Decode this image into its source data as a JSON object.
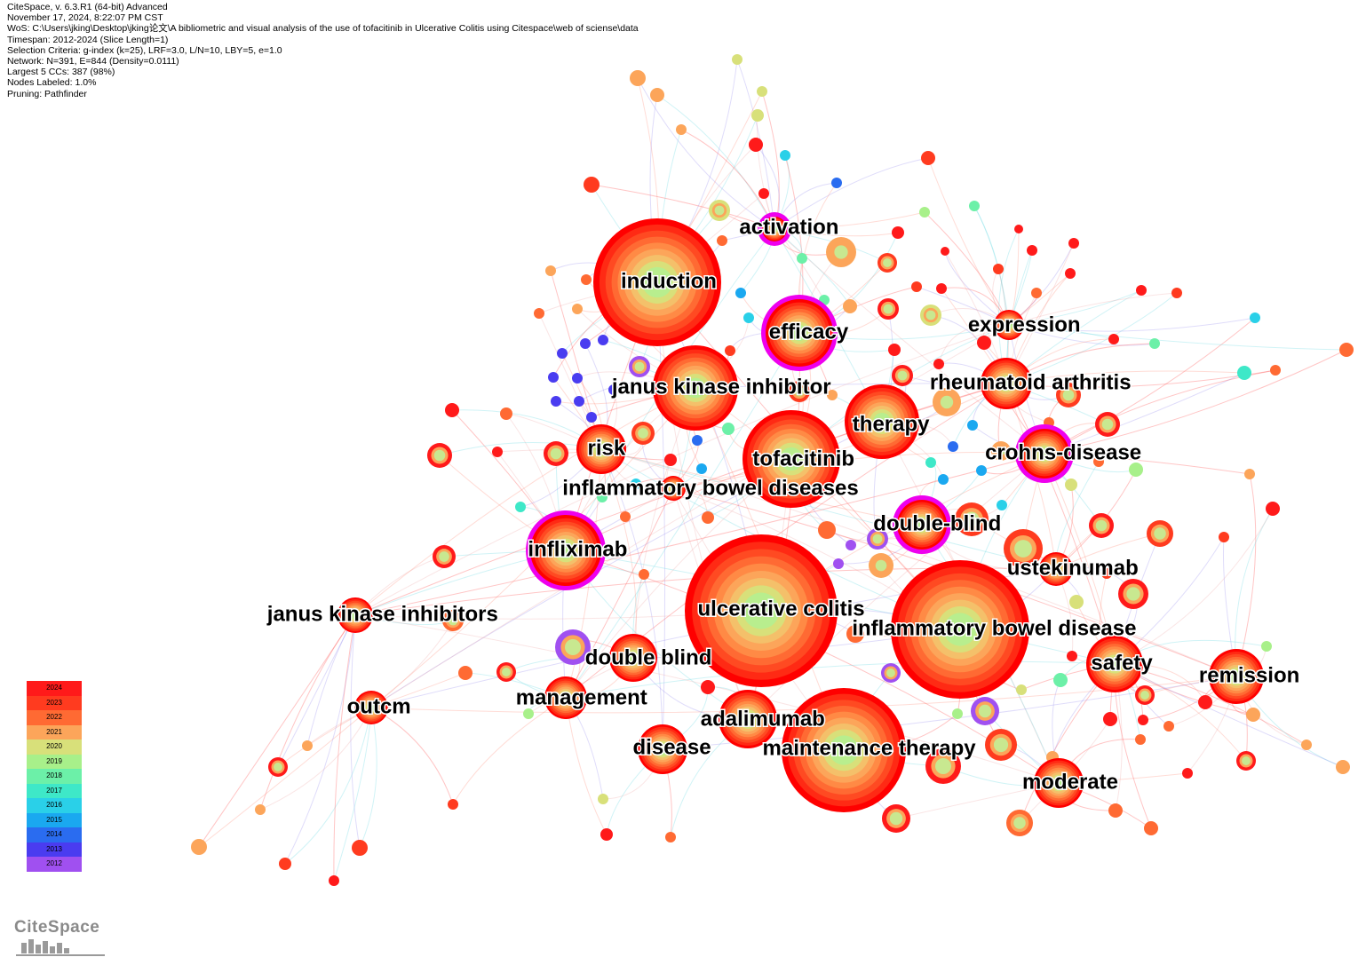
{
  "header": {
    "lines": [
      "CiteSpace, v. 6.3.R1 (64-bit) Advanced",
      "November 17, 2024, 8:22:07 PM CST",
      "WoS: C:\\Users\\jking\\Desktop\\jking论文\\A bibliometric and visual analysis of the use of tofacitinib in Ulcerative Colitis using  Citespace\\web of sciense\\data",
      "Timespan: 2012-2024 (Slice Length=1)",
      "Selection Criteria: g-index (k=25), LRF=3.0, L/N=10, LBY=5, e=1.0",
      "Network: N=391, E=844 (Density=0.0111)",
      "Largest 5 CCs: 387 (98%)",
      "Nodes Labeled: 1.0%",
      "Pruning: Pathfinder"
    ]
  },
  "legend": {
    "years": [
      {
        "label": "2024",
        "color": "#ff1a1a"
      },
      {
        "label": "2023",
        "color": "#ff3b1f"
      },
      {
        "label": "2022",
        "color": "#ff6a33"
      },
      {
        "label": "2021",
        "color": "#fca55a"
      },
      {
        "label": "2020",
        "color": "#d8e07a"
      },
      {
        "label": "2019",
        "color": "#a8f08a"
      },
      {
        "label": "2018",
        "color": "#6cf0a8"
      },
      {
        "label": "2017",
        "color": "#3ee8c8"
      },
      {
        "label": "2016",
        "color": "#2ad0e8"
      },
      {
        "label": "2015",
        "color": "#1aa8f0"
      },
      {
        "label": "2014",
        "color": "#2a6cf0"
      },
      {
        "label": "2013",
        "color": "#4a3cf0"
      },
      {
        "label": "2012",
        "color": "#a050f0"
      }
    ]
  },
  "logo": {
    "text": "CiteSpace"
  },
  "colors": {
    "ring_outer": "#ff0000",
    "ring_mid": "#ff4a22",
    "ring_warm": "#ffa060",
    "ring_core": "#c8e890",
    "centrality_ring": "#ee00ee"
  },
  "network": {
    "nodes": [
      {
        "id": "induction",
        "label": "induction",
        "size": 10
      },
      {
        "id": "activation",
        "label": "activation",
        "size": 3
      },
      {
        "id": "efficacy",
        "label": "efficacy",
        "size": 6
      },
      {
        "id": "jki",
        "label": "janus kinase inhibitor",
        "size": 7
      },
      {
        "id": "therapy",
        "label": "therapy",
        "size": 6
      },
      {
        "id": "tofacitinib",
        "label": "tofacitinib",
        "size": 9
      },
      {
        "id": "ibds",
        "label": "inflammatory bowel diseases",
        "size": 3
      },
      {
        "id": "risk",
        "label": "risk",
        "size": 4
      },
      {
        "id": "expression",
        "label": "expression",
        "size": 3
      },
      {
        "id": "ra",
        "label": "rheumatoid arthritis",
        "size": 4
      },
      {
        "id": "crohn",
        "label": "crohns-disease",
        "size": 4
      },
      {
        "id": "doubleblind1",
        "label": "double-blind",
        "size": 4
      },
      {
        "id": "infliximab",
        "label": "infliximab",
        "size": 5
      },
      {
        "id": "ustekinumab",
        "label": "ustekinumab",
        "size": 3
      },
      {
        "id": "uc",
        "label": "ulcerative colitis",
        "size": 13
      },
      {
        "id": "ibd",
        "label": "inflammatory bowel disease",
        "size": 11
      },
      {
        "id": "jkis",
        "label": "janus kinase inhibitors",
        "size": 3
      },
      {
        "id": "doubleblind2",
        "label": "double blind",
        "size": 4
      },
      {
        "id": "safety",
        "label": "safety",
        "size": 4
      },
      {
        "id": "remission",
        "label": "remission",
        "size": 4
      },
      {
        "id": "management",
        "label": "management",
        "size": 3
      },
      {
        "id": "outcm",
        "label": "outcm",
        "size": 3
      },
      {
        "id": "adalimumab",
        "label": "adalimumab",
        "size": 5
      },
      {
        "id": "disease",
        "label": "disease",
        "size": 4
      },
      {
        "id": "maintenance",
        "label": "maintenance therapy",
        "size": 11
      },
      {
        "id": "moderate",
        "label": "moderate",
        "size": 4
      }
    ]
  }
}
